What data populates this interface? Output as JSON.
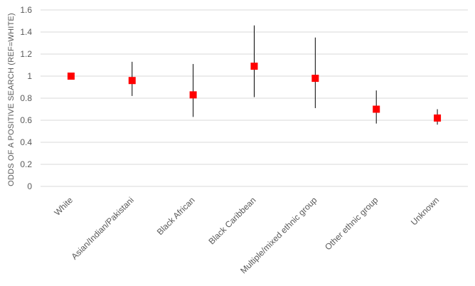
{
  "chart_data": {
    "type": "scatter",
    "ylabel": "ODDS OF A POSITIVE SEARCH (REF=WHITE)",
    "xlabel": "",
    "ylim": [
      0,
      1.6
    ],
    "yticks": [
      "0",
      "0.2",
      "0.4",
      "0.6",
      "0.8",
      "1",
      "1.2",
      "1.4",
      "1.6"
    ],
    "yticks_values": [
      0,
      0.2,
      0.4,
      0.6,
      0.8,
      1.0,
      1.2,
      1.4,
      1.6
    ],
    "grid": true,
    "marker_color": "#ff0000",
    "categories": [
      "White",
      "Asian/Indian/Pakistani",
      "Black African",
      "Black Caribbean",
      "Multiple/mixed ethnic group",
      "Other ethnic group",
      "Unknown"
    ],
    "values": [
      1.0,
      0.96,
      0.83,
      1.09,
      0.98,
      0.7,
      0.62
    ],
    "lower": [
      1.0,
      0.82,
      0.63,
      0.81,
      0.71,
      0.57,
      0.56
    ],
    "upper": [
      1.0,
      1.13,
      1.11,
      1.46,
      1.35,
      0.87,
      0.7
    ]
  }
}
